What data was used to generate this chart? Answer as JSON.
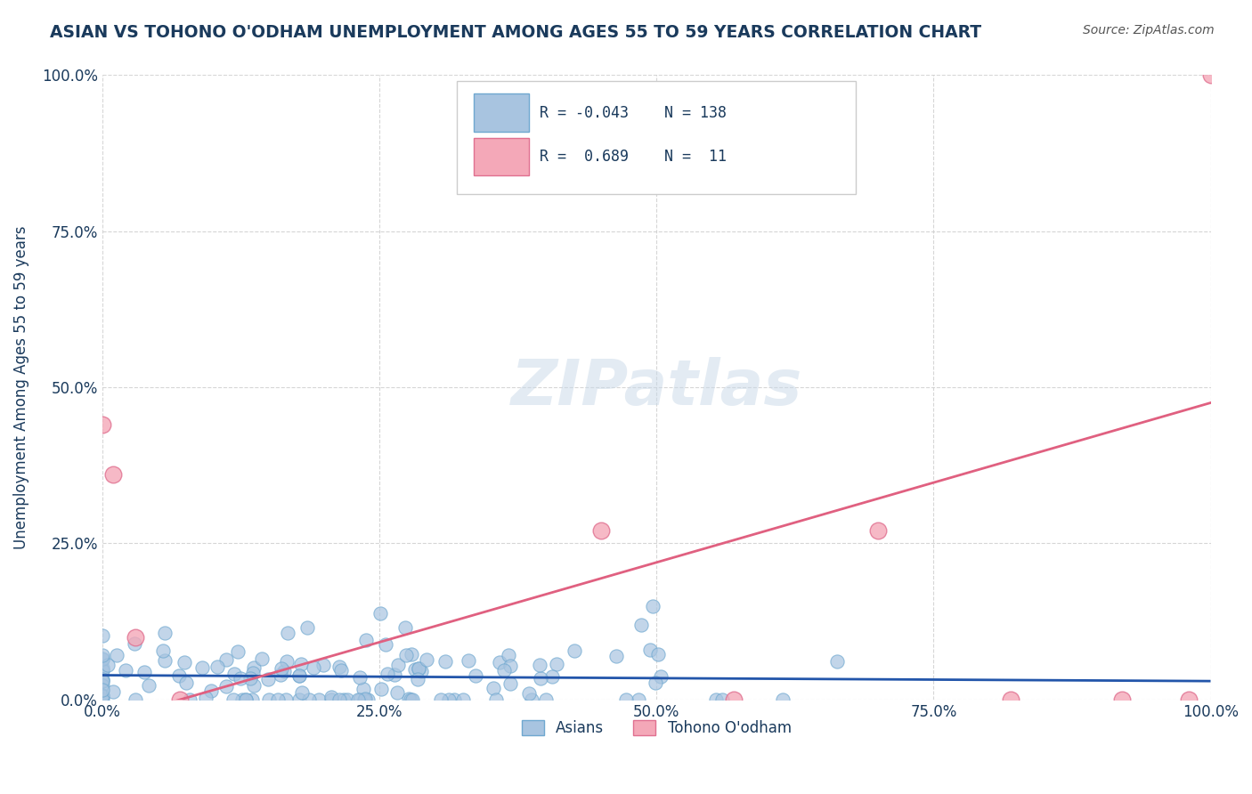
{
  "title": "ASIAN VS TOHONO O'ODHAM UNEMPLOYMENT AMONG AGES 55 TO 59 YEARS CORRELATION CHART",
  "source": "Source: ZipAtlas.com",
  "ylabel": "Unemployment Among Ages 55 to 59 years",
  "xlabel": "",
  "xlim": [
    0,
    1
  ],
  "ylim": [
    0,
    1
  ],
  "xticks": [
    0.0,
    0.25,
    0.5,
    0.75,
    1.0
  ],
  "yticks": [
    0.0,
    0.25,
    0.5,
    0.75,
    1.0
  ],
  "xticklabels": [
    "0.0%",
    "25.0%",
    "50.0%",
    "75.0%",
    "100.0%"
  ],
  "yticklabels": [
    "0.0%",
    "25.0%",
    "50.0%",
    "75.0%",
    "100.0%"
  ],
  "asian_color": "#a8c4e0",
  "tohono_color": "#f4a8b8",
  "asian_edge_color": "#6fa8d0",
  "tohono_edge_color": "#e07090",
  "blue_line_color": "#2255aa",
  "pink_line_color": "#e06080",
  "R_asian": -0.043,
  "N_asian": 138,
  "R_tohono": 0.689,
  "N_tohono": 11,
  "grid_color": "#cccccc",
  "background_color": "#ffffff",
  "watermark": "ZIPatlas",
  "legend_asian_label": "Asians",
  "legend_tohono_label": "Tohono O'odham",
  "title_color": "#1a3a5c",
  "source_color": "#555555"
}
